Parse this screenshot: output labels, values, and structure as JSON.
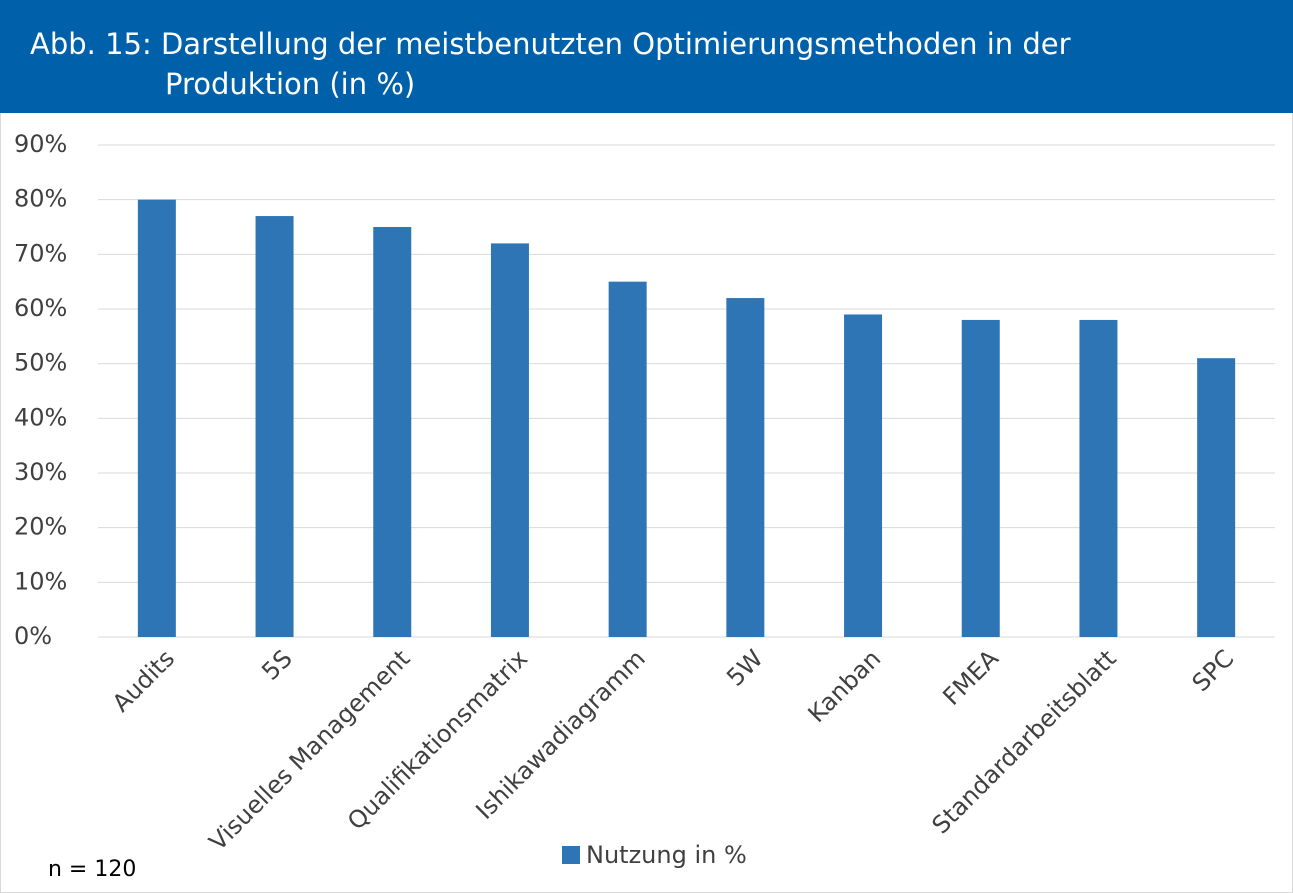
{
  "chart_data": {
    "type": "bar",
    "title": "Abb. 15: Darstellung der meistbenutzten Optimierungsmethoden in der Produktion (in %)",
    "categories": [
      "Audits",
      "5S",
      "Visuelles Management",
      "Qualifikationsmatrix",
      "Ishikawadiagramm",
      "5W",
      "Kanban",
      "FMEA",
      "Standardarbeitsblatt",
      "SPC"
    ],
    "series": [
      {
        "name": "Nutzung in %",
        "color": "#2e75b6",
        "values": [
          80,
          77,
          75,
          72,
          65,
          62,
          59,
          58,
          58,
          51
        ]
      }
    ],
    "ylim": [
      0,
      90
    ],
    "yticks": [
      {
        "value": 0,
        "label": "0%"
      },
      {
        "value": 10,
        "label": "10%"
      },
      {
        "value": 20,
        "label": "20%"
      },
      {
        "value": 30,
        "label": "30%"
      },
      {
        "value": 40,
        "label": "40%"
      },
      {
        "value": 50,
        "label": "50%"
      },
      {
        "value": 60,
        "label": "60%"
      },
      {
        "value": 70,
        "label": "70%"
      },
      {
        "value": 80,
        "label": "80%"
      },
      {
        "value": 90,
        "label": "90%"
      }
    ],
    "grid": true,
    "legend": "bottom",
    "note": "n = 120"
  }
}
